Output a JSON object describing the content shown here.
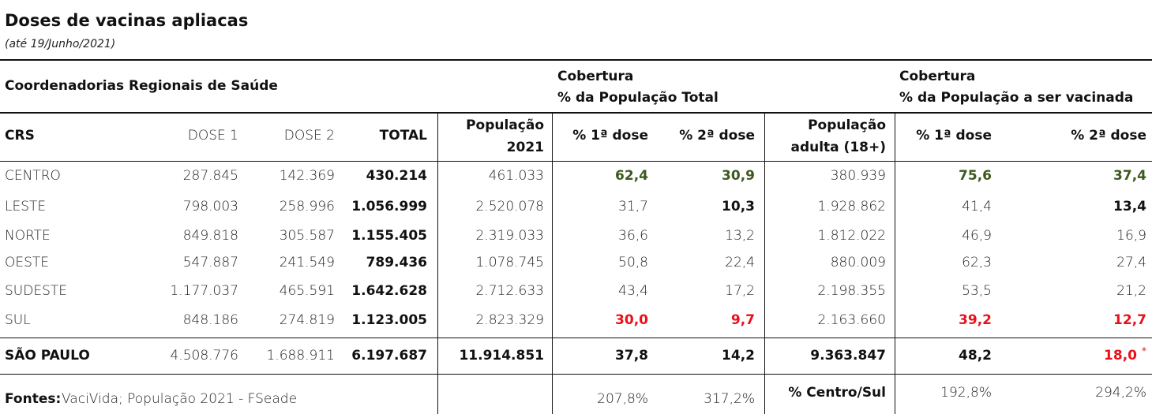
{
  "title": "Doses de vacinas apliacas",
  "subtitle": "(até 19/Junho/2021)",
  "group_header": "Coordenadorias Regionais de Saúde",
  "cov_total": {
    "line1": "Cobertura",
    "line2": "% da População Total"
  },
  "cov_target": {
    "line1": "Cobertura",
    "line2": "% da População a ser vacinada"
  },
  "columns": {
    "crs": "CRS",
    "dose1": "DOSE 1",
    "dose2": "DOSE 2",
    "total": "TOTAL",
    "pop1": "População",
    "pop2": "2021",
    "p1": "% 1ª dose",
    "p2": "% 2ª dose",
    "popa1": "População",
    "popa2": "adulta (18+)",
    "q1": "% 1ª dose",
    "q2": "% 2ª dose"
  },
  "rows": [
    {
      "crs": "CENTRO",
      "dose1": "287.845",
      "dose2": "142.369",
      "total": "430.214",
      "pop": "461.033",
      "p1": "62,4",
      "p2": "30,9",
      "popa": "380.939",
      "q1": "75,6",
      "q2": "37,4"
    },
    {
      "crs": "LESTE",
      "dose1": "798.003",
      "dose2": "258.996",
      "total": "1.056.999",
      "pop": "2.520.078",
      "p1": "31,7",
      "p2": "10,3",
      "popa": "1.928.862",
      "q1": "41,4",
      "q2": "13,4"
    },
    {
      "crs": "NORTE",
      "dose1": "849.818",
      "dose2": "305.587",
      "total": "1.155.405",
      "pop": "2.319.033",
      "p1": "36,6",
      "p2": "13,2",
      "popa": "1.812.022",
      "q1": "46,9",
      "q2": "16,9"
    },
    {
      "crs": "OESTE",
      "dose1": "547.887",
      "dose2": "241.549",
      "total": "789.436",
      "pop": "1.078.745",
      "p1": "50,8",
      "p2": "22,4",
      "popa": "880.009",
      "q1": "62,3",
      "q2": "27,4"
    },
    {
      "crs": "SUDESTE",
      "dose1": "1.177.037",
      "dose2": "465.591",
      "total": "1.642.628",
      "pop": "2.712.633",
      "p1": "43,4",
      "p2": "17,2",
      "popa": "2.198.355",
      "q1": "53,5",
      "q2": "21,2"
    },
    {
      "crs": "SUL",
      "dose1": "848.186",
      "dose2": "274.819",
      "total": "1.123.005",
      "pop": "2.823.329",
      "p1": "30,0",
      "p2": "9,7",
      "popa": "2.163.660",
      "q1": "39,2",
      "q2": "12,7"
    }
  ],
  "totals": {
    "crs": "SÃO PAULO",
    "dose1": "4.508.776",
    "dose2": "1.688.911",
    "total": "6.197.687",
    "pop": "11.914.851",
    "p1": "37,8",
    "p2": "14,2",
    "popa": "9.363.847",
    "q1": "48,2",
    "q2": "18,0",
    "mark": "*"
  },
  "footer": {
    "label": "Fontes:",
    "text": " VaciVida; População 2021 - FSeade",
    "p1": "207,8%",
    "p2": "317,2%",
    "ratio_label": "% Centro/Sul",
    "q1": "192,8%",
    "q2": "294,2%"
  },
  "colors": {
    "green": "#3d5a1e",
    "red": "#e8101a"
  }
}
